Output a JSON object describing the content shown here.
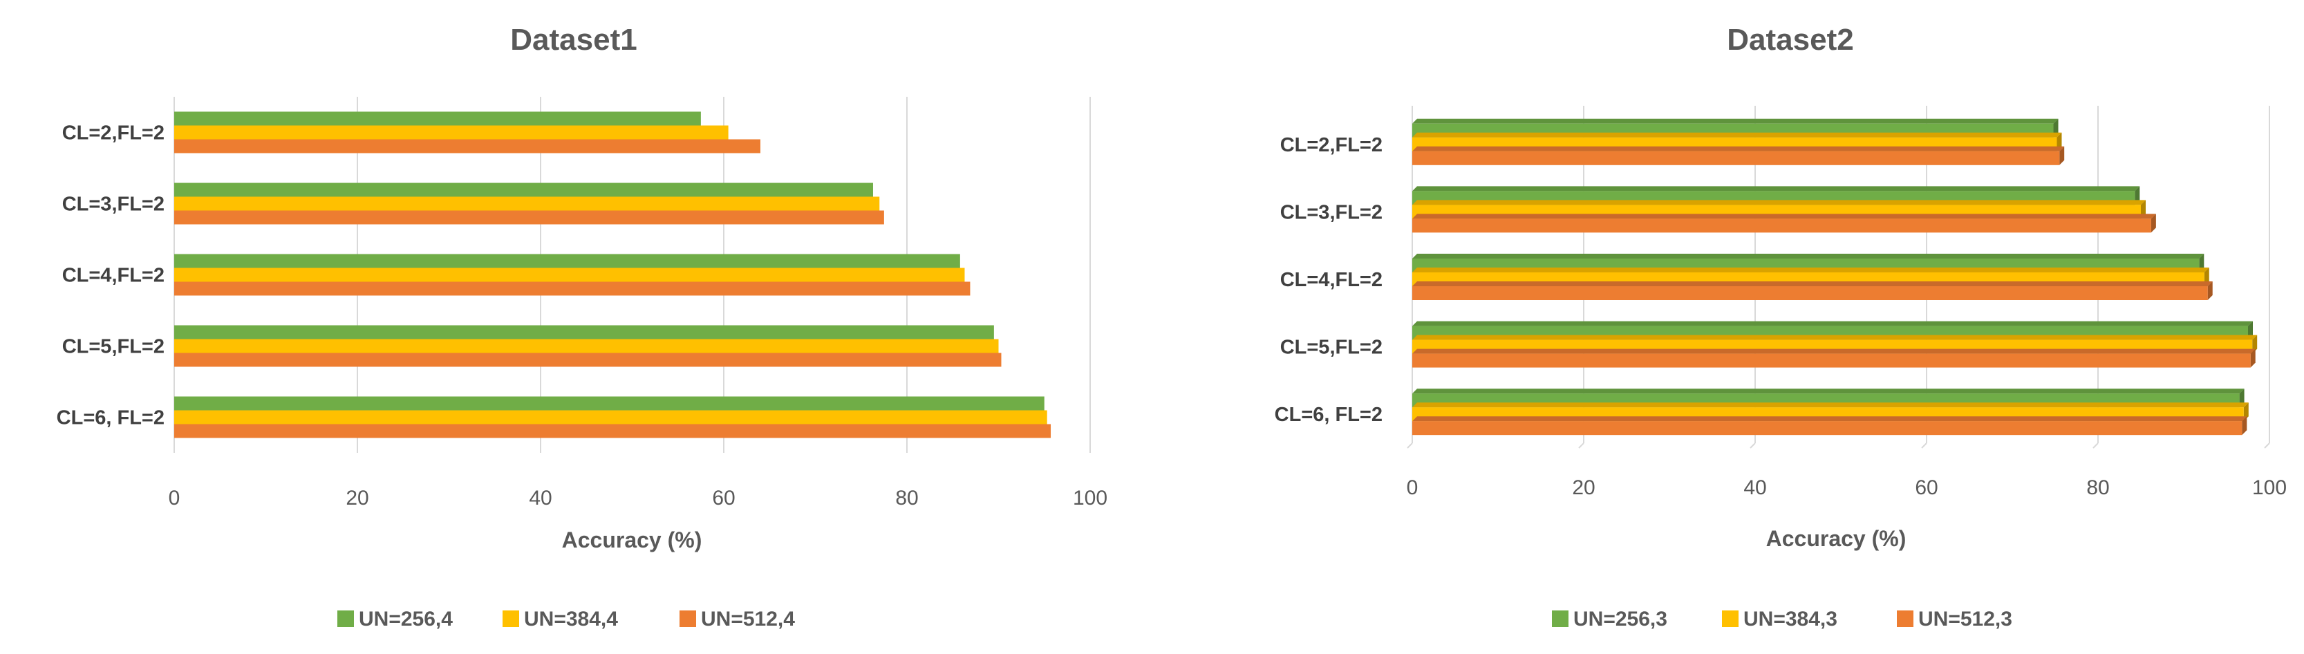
{
  "chart_data": [
    {
      "type": "bar",
      "orientation": "horizontal",
      "title": "Dataset1",
      "xlabel": "Accuracy (%)",
      "ylabel": "",
      "xlim": [
        0,
        100
      ],
      "ticks": [
        "0",
        "20",
        "40",
        "60",
        "80",
        "100"
      ],
      "grid": true,
      "legend": "bottom",
      "categories": [
        "CL=2,FL=2",
        "CL=3,FL=2",
        "CL=4,FL=2",
        "CL=5,FL=2",
        "CL=6, FL=2"
      ],
      "series": [
        {
          "name": "UN=256,4",
          "color": "#70AD47",
          "values": [
            57.5,
            76.3,
            85.8,
            89.5,
            95.0
          ]
        },
        {
          "name": "UN=384,4",
          "color": "#FFC000",
          "values": [
            60.5,
            77.0,
            86.3,
            90.0,
            95.3
          ]
        },
        {
          "name": "UN=512,4",
          "color": "#ED7D31",
          "values": [
            64.0,
            77.5,
            86.9,
            90.3,
            95.7
          ]
        }
      ]
    },
    {
      "type": "bar",
      "orientation": "horizontal",
      "style": "3d",
      "title": "Dataset2",
      "xlabel": "Accuracy (%)",
      "ylabel": "",
      "xlim": [
        0,
        100
      ],
      "ticks": [
        "0",
        "20",
        "40",
        "60",
        "80",
        "100"
      ],
      "grid": true,
      "legend": "bottom",
      "categories": [
        "CL=2,FL=2",
        "CL=3,FL=2",
        "CL=4,FL=2",
        "CL=5,FL=2",
        "CL=6, FL=2"
      ],
      "series": [
        {
          "name": "UN=256,3",
          "color": "#70AD47",
          "values": [
            74.8,
            84.3,
            91.8,
            97.5,
            96.5
          ]
        },
        {
          "name": "UN=384,3",
          "color": "#FFC000",
          "values": [
            75.2,
            85.0,
            92.4,
            98.0,
            97.0
          ]
        },
        {
          "name": "UN=512,3",
          "color": "#ED7D31",
          "values": [
            75.5,
            86.2,
            92.8,
            97.8,
            96.8
          ]
        }
      ]
    }
  ]
}
